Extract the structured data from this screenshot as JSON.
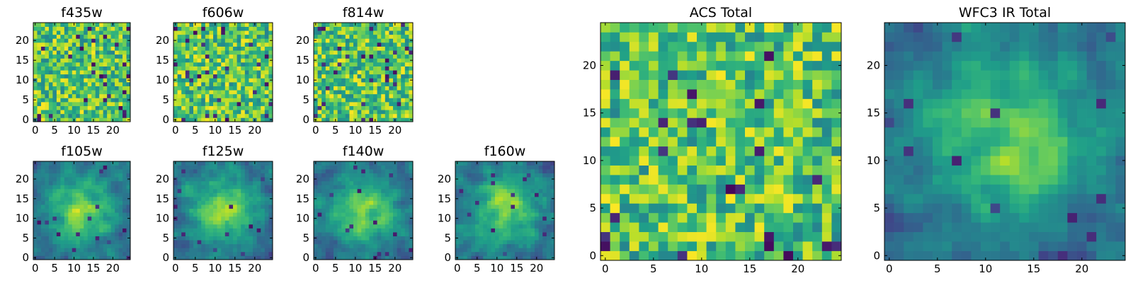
{
  "figure": {
    "colormap": "viridis",
    "colors": {
      "viridis_low": "#440154",
      "viridis_mid": "#21918c",
      "viridis_high": "#fde725"
    }
  },
  "chart_data": [
    {
      "type": "heatmap",
      "title": "f435w",
      "rows": 25,
      "cols": 25,
      "xticks": [
        "0",
        "5",
        "10",
        "15",
        "20"
      ],
      "yticks": [
        "0",
        "5",
        "10",
        "15",
        "20"
      ],
      "xlim": [
        -0.5,
        24.5
      ],
      "ylim": [
        -0.5,
        24.5
      ],
      "pattern": "noise",
      "seed": 11
    },
    {
      "type": "heatmap",
      "title": "f606w",
      "rows": 25,
      "cols": 25,
      "xticks": [
        "0",
        "5",
        "10",
        "15",
        "20"
      ],
      "yticks": [
        "0",
        "5",
        "10",
        "15",
        "20"
      ],
      "xlim": [
        -0.5,
        24.5
      ],
      "ylim": [
        -0.5,
        24.5
      ],
      "pattern": "noise",
      "seed": 23
    },
    {
      "type": "heatmap",
      "title": "f814w",
      "rows": 25,
      "cols": 25,
      "xticks": [
        "0",
        "5",
        "10",
        "15",
        "20"
      ],
      "yticks": [
        "0",
        "5",
        "10",
        "15",
        "20"
      ],
      "xlim": [
        -0.5,
        24.5
      ],
      "ylim": [
        -0.5,
        24.5
      ],
      "pattern": "noise",
      "seed": 37
    },
    {
      "type": "heatmap",
      "title": "f105w",
      "rows": 25,
      "cols": 25,
      "xticks": [
        "0",
        "5",
        "10",
        "15",
        "20"
      ],
      "yticks": [
        "0",
        "5",
        "10",
        "15",
        "20"
      ],
      "xlim": [
        -0.5,
        24.5
      ],
      "ylim": [
        -0.5,
        24.5
      ],
      "pattern": "smooth",
      "seed": 41
    },
    {
      "type": "heatmap",
      "title": "f125w",
      "rows": 25,
      "cols": 25,
      "xticks": [
        "0",
        "5",
        "10",
        "15",
        "20"
      ],
      "yticks": [
        "0",
        "5",
        "10",
        "15",
        "20"
      ],
      "xlim": [
        -0.5,
        24.5
      ],
      "ylim": [
        -0.5,
        24.5
      ],
      "pattern": "smooth",
      "seed": 53
    },
    {
      "type": "heatmap",
      "title": "f140w",
      "rows": 25,
      "cols": 25,
      "xticks": [
        "0",
        "5",
        "10",
        "15",
        "20"
      ],
      "yticks": [
        "0",
        "5",
        "10",
        "15",
        "20"
      ],
      "xlim": [
        -0.5,
        24.5
      ],
      "ylim": [
        -0.5,
        24.5
      ],
      "pattern": "smooth",
      "seed": 67
    },
    {
      "type": "heatmap",
      "title": "f160w",
      "rows": 25,
      "cols": 25,
      "xticks": [
        "0",
        "5",
        "10",
        "15",
        "20"
      ],
      "yticks": [
        "0",
        "5",
        "10",
        "15",
        "20"
      ],
      "xlim": [
        -0.5,
        24.5
      ],
      "ylim": [
        -0.5,
        24.5
      ],
      "pattern": "smooth",
      "seed": 79
    },
    {
      "type": "heatmap",
      "title": "ACS Total",
      "rows": 25,
      "cols": 25,
      "xticks": [
        "0",
        "5",
        "10",
        "15",
        "20"
      ],
      "yticks": [
        "0",
        "5",
        "10",
        "15",
        "20"
      ],
      "xlim": [
        -0.5,
        24.5
      ],
      "ylim": [
        -0.5,
        24.5
      ],
      "pattern": "noise",
      "seed": 97
    },
    {
      "type": "heatmap",
      "title": "WFC3 IR Total",
      "rows": 25,
      "cols": 25,
      "xticks": [
        "0",
        "5",
        "10",
        "15",
        "20"
      ],
      "yticks": [
        "0",
        "5",
        "10",
        "15",
        "20"
      ],
      "xlim": [
        -0.5,
        24.5
      ],
      "ylim": [
        -0.5,
        24.5
      ],
      "pattern": "smooth",
      "seed": 101
    }
  ]
}
